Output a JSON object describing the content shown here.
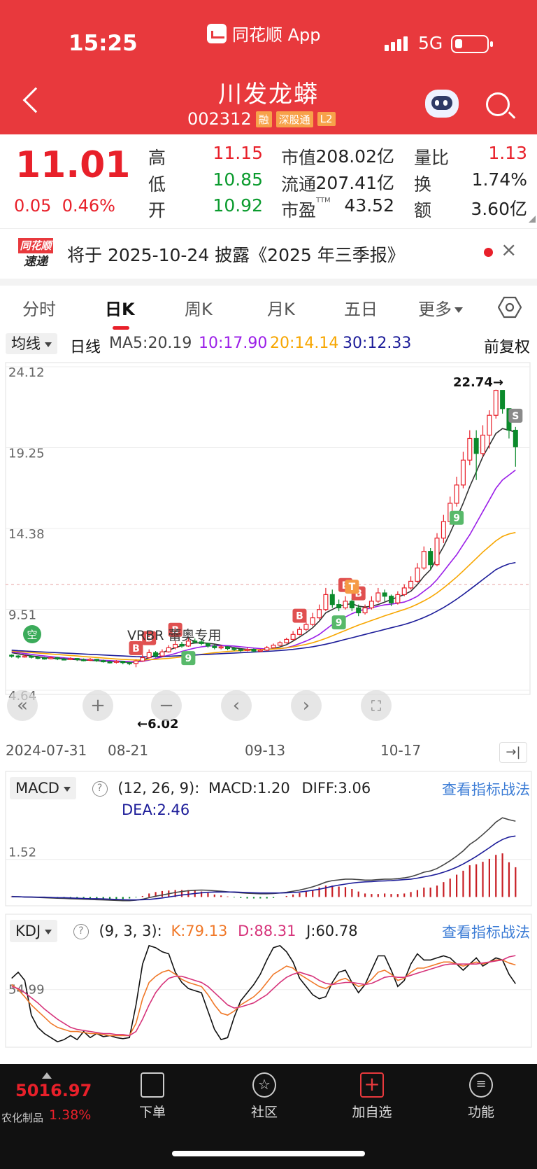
{
  "status_bar": {
    "time": "15:25",
    "app_name": "同花顺 App",
    "network": "5G"
  },
  "header": {
    "stock_name": "川发龙蟒",
    "stock_code": "002312",
    "tags": [
      "融",
      "深股通",
      "L2"
    ]
  },
  "quote": {
    "price": "11.01",
    "change": "0.05",
    "change_pct": "0.46%",
    "high_label": "高",
    "high": "11.15",
    "low_label": "低",
    "low": "10.85",
    "open_label": "开",
    "open": "10.92",
    "mcap_label": "市值",
    "mcap": "208.02亿",
    "float_label": "流通",
    "float": "207.41亿",
    "pe_label": "市盈",
    "pe_sup": "TTM",
    "pe": "43.52",
    "vr_label": "量比",
    "vr": "1.13",
    "turnover_label": "换",
    "turnover": "1.74%",
    "amount_label": "额",
    "amount": "3.60亿"
  },
  "news": {
    "logo_top": "同花顺",
    "logo_bottom": "速递",
    "text": "将于 2025-10-24 披露《2025 年三季报》"
  },
  "tabs": [
    "分时",
    "日K",
    "周K",
    "月K",
    "五日",
    "更多"
  ],
  "ma_legend": {
    "selector": "均线",
    "period": "日线",
    "ma5": "MA5:20.19",
    "ma10": "10:17.90",
    "ma20": "20:14.14",
    "ma30": "30:12.33",
    "adjust": "前复权",
    "colors": {
      "ma5": "#333333",
      "ma10": "#9b1fe8",
      "ma20": "#f7a600",
      "ma30": "#1c1c99"
    }
  },
  "chart_annotations": {
    "high_mark": "22.74→",
    "low_mark": "←6.02",
    "watermark": "VRBR 蕾奥专用",
    "empty_badge": "空",
    "buy_badge": "B",
    "sell_badge": "S",
    "t_badge": "T",
    "nine_badge": "9"
  },
  "chart_data": {
    "type": "candlestick",
    "y_ticks": [
      "24.12",
      "19.25",
      "14.38",
      "9.51",
      "4.64"
    ],
    "ylim": [
      4.64,
      24.12
    ],
    "x_labels": [
      "2024-07-31",
      "08-21",
      "09-13",
      "10-17"
    ],
    "candles": [
      [
        6.75,
        6.7,
        6.8,
        6.6
      ],
      [
        6.7,
        6.65,
        6.75,
        6.55
      ],
      [
        6.65,
        6.7,
        6.78,
        6.6
      ],
      [
        6.7,
        6.62,
        6.74,
        6.55
      ],
      [
        6.62,
        6.58,
        6.7,
        6.5
      ],
      [
        6.58,
        6.55,
        6.65,
        6.48
      ],
      [
        6.55,
        6.6,
        6.68,
        6.5
      ],
      [
        6.6,
        6.52,
        6.64,
        6.45
      ],
      [
        6.52,
        6.5,
        6.6,
        6.44
      ],
      [
        6.5,
        6.55,
        6.62,
        6.45
      ],
      [
        6.55,
        6.48,
        6.58,
        6.4
      ],
      [
        6.48,
        6.45,
        6.55,
        6.38
      ],
      [
        6.45,
        6.5,
        6.58,
        6.4
      ],
      [
        6.5,
        6.42,
        6.52,
        6.35
      ],
      [
        6.42,
        6.35,
        6.48,
        6.3
      ],
      [
        6.35,
        6.32,
        6.42,
        6.25
      ],
      [
        6.32,
        6.38,
        6.45,
        6.25
      ],
      [
        6.38,
        6.3,
        6.4,
        6.2
      ],
      [
        6.3,
        6.25,
        6.35,
        6.15
      ],
      [
        6.25,
        6.4,
        6.5,
        6.02
      ],
      [
        6.4,
        6.6,
        6.8,
        6.35
      ],
      [
        6.6,
        6.9,
        7.1,
        6.55
      ],
      [
        6.9,
        6.7,
        7.0,
        6.6
      ],
      [
        6.7,
        6.95,
        7.1,
        6.65
      ],
      [
        6.95,
        7.2,
        7.35,
        6.9
      ],
      [
        7.2,
        7.4,
        7.6,
        7.1
      ],
      [
        7.4,
        7.3,
        7.55,
        7.2
      ],
      [
        7.3,
        7.6,
        7.8,
        7.25
      ],
      [
        7.6,
        7.55,
        7.75,
        7.45
      ],
      [
        7.55,
        7.45,
        7.7,
        7.35
      ],
      [
        7.45,
        7.3,
        7.5,
        7.2
      ],
      [
        7.3,
        7.2,
        7.4,
        7.1
      ],
      [
        7.2,
        7.25,
        7.35,
        7.1
      ],
      [
        7.25,
        7.15,
        7.3,
        7.05
      ],
      [
        7.15,
        7.1,
        7.25,
        7.0
      ],
      [
        7.1,
        7.05,
        7.15,
        6.95
      ],
      [
        7.05,
        7.1,
        7.2,
        6.98
      ],
      [
        7.1,
        7.0,
        7.15,
        6.92
      ],
      [
        7.0,
        7.05,
        7.12,
        6.95
      ],
      [
        7.05,
        7.2,
        7.3,
        7.0
      ],
      [
        7.2,
        7.35,
        7.45,
        7.15
      ],
      [
        7.35,
        7.5,
        7.6,
        7.3
      ],
      [
        7.5,
        7.7,
        7.8,
        7.45
      ],
      [
        7.7,
        8.0,
        8.2,
        7.65
      ],
      [
        8.0,
        8.3,
        8.45,
        7.95
      ],
      [
        8.3,
        8.6,
        8.8,
        8.2
      ],
      [
        8.6,
        9.0,
        9.3,
        8.5
      ],
      [
        9.0,
        9.5,
        9.8,
        8.9
      ],
      [
        9.5,
        10.4,
        10.8,
        9.4
      ],
      [
        10.4,
        9.8,
        10.7,
        9.6
      ],
      [
        9.8,
        9.6,
        10.1,
        9.4
      ],
      [
        9.6,
        10.0,
        10.3,
        9.5
      ],
      [
        10.0,
        9.6,
        10.2,
        9.4
      ],
      [
        9.6,
        9.3,
        9.8,
        9.1
      ],
      [
        9.3,
        9.6,
        9.8,
        9.2
      ],
      [
        9.6,
        10.0,
        10.3,
        9.5
      ],
      [
        10.0,
        10.5,
        10.8,
        9.9
      ],
      [
        10.5,
        10.3,
        10.7,
        10.0
      ],
      [
        10.3,
        9.9,
        10.4,
        9.7
      ],
      [
        9.9,
        10.4,
        10.6,
        9.8
      ],
      [
        10.4,
        10.8,
        11.0,
        10.3
      ],
      [
        10.8,
        11.2,
        11.5,
        10.7
      ],
      [
        11.2,
        12.0,
        12.3,
        11.1
      ],
      [
        12.0,
        13.0,
        13.3,
        11.9
      ],
      [
        13.0,
        12.2,
        13.2,
        11.9
      ],
      [
        12.2,
        13.8,
        14.1,
        12.1
      ],
      [
        13.8,
        14.8,
        15.2,
        13.5
      ],
      [
        14.8,
        15.9,
        16.3,
        14.6
      ],
      [
        15.9,
        17.0,
        17.5,
        15.7
      ],
      [
        17.0,
        18.5,
        19.0,
        16.8
      ],
      [
        18.5,
        19.8,
        20.3,
        18.2
      ],
      [
        19.8,
        18.9,
        20.3,
        17.3
      ],
      [
        18.9,
        20.0,
        20.6,
        18.7
      ],
      [
        20.0,
        21.2,
        21.5,
        19.2
      ],
      [
        21.2,
        22.7,
        22.74,
        21.0
      ],
      [
        22.7,
        21.6,
        22.3,
        21.3
      ],
      [
        21.6,
        20.3,
        21.6,
        19.8
      ],
      [
        20.3,
        19.3,
        20.5,
        18.1
      ]
    ],
    "ma_series": [
      {
        "name": "MA5",
        "color": "#333333",
        "values": [
          6.9,
          6.83,
          6.76,
          6.7,
          6.66,
          6.6,
          6.57,
          6.55,
          6.53,
          6.5,
          6.48,
          6.46,
          6.44,
          6.42,
          6.4,
          6.38,
          6.36,
          6.34,
          6.32,
          6.34,
          6.45,
          6.6,
          6.75,
          6.9,
          7.05,
          7.2,
          7.32,
          7.42,
          7.48,
          7.5,
          7.47,
          7.42,
          7.35,
          7.28,
          7.2,
          7.14,
          7.1,
          7.08,
          7.07,
          7.08,
          7.15,
          7.25,
          7.38,
          7.6,
          7.85,
          8.1,
          8.4,
          8.8,
          9.3,
          9.5,
          9.7,
          9.8,
          9.85,
          9.7,
          9.65,
          9.7,
          9.8,
          9.95,
          10.1,
          10.25,
          10.4,
          10.6,
          11.0,
          11.5,
          11.9,
          12.6,
          13.3,
          14.1,
          15.0,
          15.9,
          16.9,
          17.8,
          18.7,
          19.4,
          20.1,
          20.4,
          20.3,
          20.19
        ]
      },
      {
        "name": "MA10",
        "color": "#9b1fe8",
        "values": [
          6.95,
          6.9,
          6.85,
          6.8,
          6.75,
          6.7,
          6.66,
          6.62,
          6.59,
          6.56,
          6.53,
          6.5,
          6.48,
          6.46,
          6.44,
          6.42,
          6.4,
          6.38,
          6.36,
          6.35,
          6.38,
          6.45,
          6.55,
          6.65,
          6.75,
          6.85,
          6.97,
          7.08,
          7.18,
          7.25,
          7.3,
          7.32,
          7.33,
          7.32,
          7.3,
          7.26,
          7.22,
          7.18,
          7.15,
          7.12,
          7.12,
          7.15,
          7.2,
          7.3,
          7.45,
          7.6,
          7.78,
          8.0,
          8.3,
          8.6,
          8.85,
          9.05,
          9.25,
          9.4,
          9.52,
          9.6,
          9.7,
          9.78,
          9.82,
          9.88,
          9.95,
          10.1,
          10.3,
          10.6,
          10.9,
          11.3,
          11.8,
          12.3,
          12.8,
          13.4,
          14.0,
          14.7,
          15.4,
          16.1,
          16.8,
          17.3,
          17.6,
          17.9
        ]
      },
      {
        "name": "MA20",
        "color": "#f7a600",
        "values": [
          7.0,
          6.97,
          6.94,
          6.91,
          6.88,
          6.85,
          6.82,
          6.79,
          6.76,
          6.73,
          6.7,
          6.67,
          6.64,
          6.61,
          6.58,
          6.55,
          6.52,
          6.5,
          6.48,
          6.46,
          6.46,
          6.48,
          6.5,
          6.53,
          6.56,
          6.6,
          6.65,
          6.7,
          6.75,
          6.8,
          6.85,
          6.9,
          6.94,
          6.97,
          7.0,
          7.02,
          7.04,
          7.06,
          7.08,
          7.1,
          7.12,
          7.15,
          7.19,
          7.25,
          7.32,
          7.4,
          7.5,
          7.62,
          7.76,
          7.92,
          8.08,
          8.24,
          8.4,
          8.56,
          8.7,
          8.84,
          8.98,
          9.12,
          9.25,
          9.38,
          9.5,
          9.65,
          9.82,
          10.02,
          10.24,
          10.5,
          10.8,
          11.12,
          11.46,
          11.82,
          12.2,
          12.58,
          12.96,
          13.3,
          13.64,
          13.9,
          14.05,
          14.14
        ]
      },
      {
        "name": "MA30",
        "color": "#1c1c99",
        "values": [
          7.05,
          7.02,
          7.0,
          6.98,
          6.96,
          6.94,
          6.92,
          6.9,
          6.88,
          6.86,
          6.84,
          6.82,
          6.8,
          6.78,
          6.76,
          6.74,
          6.72,
          6.7,
          6.68,
          6.66,
          6.65,
          6.65,
          6.66,
          6.67,
          6.68,
          6.7,
          6.72,
          6.74,
          6.76,
          6.78,
          6.8,
          6.82,
          6.84,
          6.86,
          6.88,
          6.9,
          6.92,
          6.94,
          6.96,
          6.98,
          7.0,
          7.03,
          7.06,
          7.1,
          7.15,
          7.2,
          7.26,
          7.33,
          7.41,
          7.5,
          7.6,
          7.7,
          7.8,
          7.9,
          8.0,
          8.1,
          8.2,
          8.3,
          8.4,
          8.5,
          8.6,
          8.72,
          8.86,
          9.02,
          9.2,
          9.4,
          9.62,
          9.86,
          10.12,
          10.4,
          10.7,
          11.0,
          11.3,
          11.6,
          11.9,
          12.1,
          12.25,
          12.33
        ]
      }
    ],
    "macd": {
      "title": "MACD",
      "params": "(12, 26, 9):",
      "macd_label": "MACD:1.20",
      "diff_label": "DIFF:3.06",
      "dea_label": "DEA:2.46",
      "y_tick": "1.52",
      "ylim": [
        -0.3,
        3.6
      ],
      "diff": [
        0.02,
        0.01,
        0.0,
        -0.01,
        -0.02,
        -0.03,
        -0.04,
        -0.05,
        -0.06,
        -0.07,
        -0.08,
        -0.09,
        -0.1,
        -0.11,
        -0.12,
        -0.13,
        -0.14,
        -0.15,
        -0.15,
        -0.13,
        -0.09,
        -0.03,
        0.03,
        0.08,
        0.13,
        0.18,
        0.22,
        0.25,
        0.27,
        0.28,
        0.27,
        0.25,
        0.23,
        0.21,
        0.19,
        0.17,
        0.15,
        0.14,
        0.13,
        0.13,
        0.14,
        0.16,
        0.19,
        0.23,
        0.28,
        0.34,
        0.41,
        0.5,
        0.6,
        0.66,
        0.69,
        0.72,
        0.72,
        0.7,
        0.68,
        0.68,
        0.7,
        0.72,
        0.72,
        0.74,
        0.77,
        0.82,
        0.9,
        1.0,
        1.05,
        1.15,
        1.3,
        1.46,
        1.65,
        1.86,
        2.12,
        2.3,
        2.52,
        2.76,
        3.02,
        3.2,
        3.12,
        3.06
      ],
      "dea": [
        0.01,
        0.01,
        0.0,
        0.0,
        -0.01,
        -0.01,
        -0.02,
        -0.03,
        -0.03,
        -0.04,
        -0.05,
        -0.06,
        -0.07,
        -0.07,
        -0.08,
        -0.09,
        -0.1,
        -0.11,
        -0.12,
        -0.12,
        -0.11,
        -0.1,
        -0.07,
        -0.04,
        0.0,
        0.04,
        0.08,
        0.11,
        0.14,
        0.17,
        0.19,
        0.2,
        0.2,
        0.2,
        0.2,
        0.19,
        0.18,
        0.17,
        0.16,
        0.16,
        0.16,
        0.16,
        0.17,
        0.18,
        0.2,
        0.23,
        0.27,
        0.31,
        0.37,
        0.43,
        0.48,
        0.52,
        0.56,
        0.59,
        0.61,
        0.62,
        0.64,
        0.65,
        0.66,
        0.68,
        0.7,
        0.72,
        0.76,
        0.81,
        0.86,
        0.92,
        1.0,
        1.09,
        1.2,
        1.33,
        1.48,
        1.64,
        1.81,
        1.99,
        2.17,
        2.32,
        2.42,
        2.46
      ],
      "bars": [
        0.02,
        0.0,
        0.0,
        -0.02,
        -0.02,
        -0.04,
        -0.04,
        -0.04,
        -0.06,
        -0.06,
        -0.06,
        -0.06,
        -0.06,
        -0.08,
        -0.08,
        -0.08,
        -0.08,
        -0.08,
        -0.06,
        -0.02,
        0.04,
        0.14,
        0.2,
        0.24,
        0.26,
        0.28,
        0.28,
        0.28,
        0.26,
        0.22,
        0.16,
        0.1,
        0.06,
        0.02,
        -0.02,
        -0.04,
        -0.06,
        -0.06,
        -0.06,
        -0.06,
        -0.04,
        0.0,
        0.04,
        0.1,
        0.16,
        0.22,
        0.28,
        0.38,
        0.46,
        0.46,
        0.42,
        0.4,
        0.32,
        0.22,
        0.14,
        0.12,
        0.12,
        0.14,
        0.12,
        0.12,
        0.14,
        0.2,
        0.28,
        0.38,
        0.38,
        0.46,
        0.6,
        0.74,
        0.9,
        1.06,
        1.28,
        1.32,
        1.42,
        1.54,
        1.7,
        1.76,
        1.4,
        1.2
      ]
    },
    "kdj": {
      "title": "KDJ",
      "params": "(9, 3, 3):",
      "k_label": "K:79.13",
      "d_label": "D:88.31",
      "j_label": "J:60.78",
      "y_tick": "54.99",
      "ylim": [
        0,
        100
      ],
      "k": [
        60,
        55,
        48,
        40,
        34,
        28,
        22,
        18,
        16,
        14,
        14,
        13,
        12,
        12,
        11,
        10,
        10,
        10,
        10,
        22,
        46,
        62,
        68,
        72,
        74,
        70,
        65,
        62,
        60,
        58,
        50,
        40,
        32,
        30,
        34,
        40,
        44,
        48,
        54,
        62,
        70,
        74,
        78,
        76,
        70,
        66,
        62,
        58,
        56,
        60,
        64,
        66,
        62,
        58,
        60,
        65,
        72,
        74,
        70,
        64,
        66,
        72,
        76,
        76,
        78,
        80,
        82,
        82,
        80,
        78,
        80,
        82,
        80,
        82,
        84,
        84,
        81,
        79.13
      ],
      "d": [
        58,
        56,
        52,
        47,
        42,
        36,
        31,
        26,
        22,
        18,
        16,
        15,
        14,
        13,
        12,
        12,
        11,
        11,
        10,
        14,
        26,
        40,
        52,
        60,
        66,
        68,
        68,
        66,
        64,
        62,
        58,
        52,
        46,
        40,
        37,
        38,
        40,
        42,
        46,
        50,
        56,
        62,
        67,
        70,
        72,
        70,
        68,
        64,
        61,
        60,
        61,
        62,
        62,
        61,
        60,
        61,
        64,
        67,
        68,
        67,
        67,
        69,
        71,
        73,
        75,
        77,
        79,
        80,
        80,
        80,
        80,
        80,
        81,
        82,
        83,
        84,
        87,
        88.31
      ],
      "j": [
        66,
        72,
        64,
        30,
        18,
        12,
        8,
        4,
        6,
        10,
        6,
        14,
        8,
        12,
        9,
        10,
        8,
        7,
        8,
        40,
        80,
        98,
        96,
        92,
        90,
        72,
        62,
        56,
        54,
        52,
        34,
        16,
        6,
        8,
        28,
        44,
        52,
        60,
        70,
        84,
        96,
        98,
        92,
        82,
        66,
        58,
        50,
        46,
        48,
        62,
        72,
        74,
        62,
        52,
        60,
        74,
        88,
        88,
        74,
        58,
        64,
        80,
        90,
        84,
        84,
        86,
        88,
        86,
        80,
        74,
        80,
        86,
        78,
        82,
        86,
        84,
        70,
        60.78
      ]
    }
  },
  "controls": {
    "rewind": "«",
    "zoom_in": "+",
    "zoom_out": "−",
    "prev": "‹",
    "next": "›"
  },
  "indicator_link": "查看指标战法",
  "bottom_bar": {
    "index_value": "5016.97",
    "index_name": "农化制品",
    "index_pct": "1.38%",
    "nav": [
      "下单",
      "社区",
      "加自选",
      "功能"
    ]
  }
}
